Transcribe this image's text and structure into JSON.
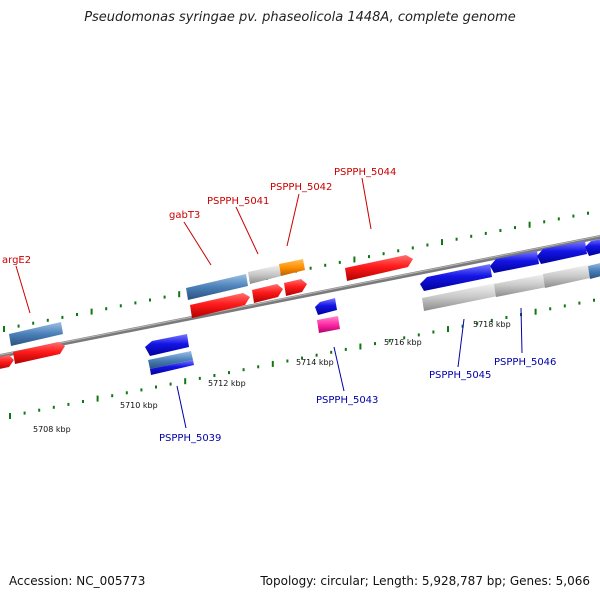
{
  "header": {
    "title": "Pseudomonas syringae pv. phaseolicola 1448A, complete genome"
  },
  "footer": {
    "accession": "Accession: NC_005773",
    "info": "Topology: circular; Length: 5,928,787 bp; Genes: 5,066"
  },
  "colors": {
    "forward_cds": "#ff1a1a",
    "reverse_cds": "#1414e6",
    "gene_forward": "#4a80b8",
    "unknown": "#c8c8c8",
    "orange": "#ff9000",
    "magenta": "#ff2aa6",
    "tick": "#117711",
    "backbone": "#808080"
  },
  "axis": {
    "kbp_labels": [
      "5708 kbp",
      "5710 kbp",
      "5712 kbp",
      "5714 kbp",
      "5716 kbp",
      "5718 kbp"
    ]
  },
  "features": {
    "forward_labels": [
      "argE2",
      "gabT3",
      "PSPPH_5041",
      "PSPPH_5042",
      "PSPPH_5044"
    ],
    "reverse_labels": [
      "PSPPH_5039",
      "PSPPH_5043",
      "PSPPH_5045",
      "PSPPH_5046"
    ]
  }
}
